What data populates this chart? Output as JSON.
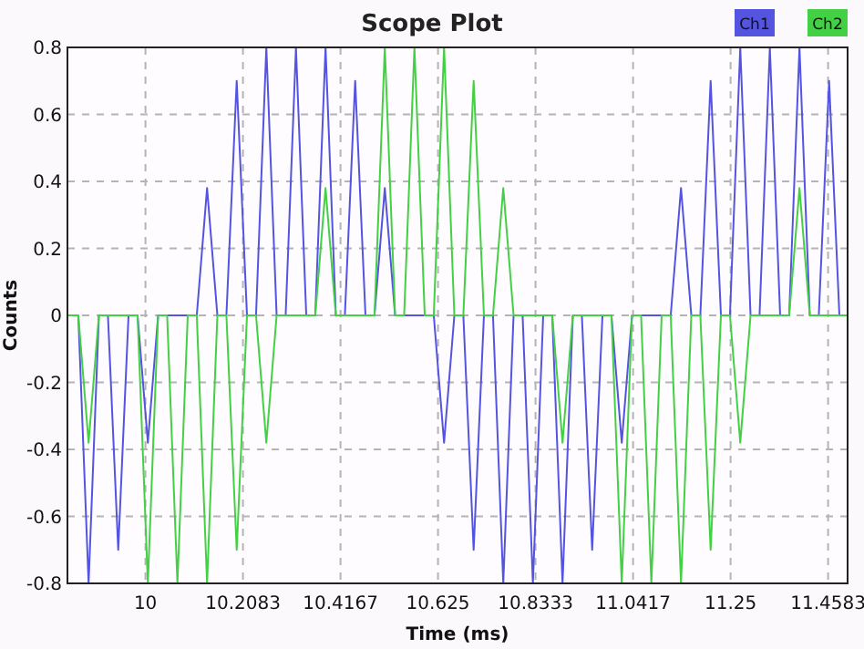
{
  "chart_data": {
    "type": "line",
    "title": "Scope Plot",
    "xlabel": "Time (ms)",
    "ylabel": "Counts",
    "xlim": [
      9.8333,
      11.5
    ],
    "xticks": [
      10,
      10.2083,
      10.4167,
      10.625,
      10.8333,
      11.0417,
      11.25,
      11.4583
    ],
    "ylim": [
      -0.8,
      0.8
    ],
    "yticks": [
      -0.8,
      -0.6,
      -0.4,
      -0.2,
      0,
      0.2,
      0.4,
      0.6,
      0.8
    ],
    "grid": true,
    "legend": "top right",
    "marker": "none",
    "line_style": "solid",
    "series": [
      {
        "name": "Ch1",
        "color": "#5454e0",
        "x": [
          9.8333,
          9.8565,
          9.8785,
          9.9005,
          9.9198,
          9.9418,
          9.9638,
          9.9831,
          10.0051,
          10.0271,
          10.1096,
          10.1316,
          10.1536,
          10.1729,
          10.1949,
          10.2169,
          10.2362,
          10.2582,
          10.2802,
          10.2995,
          10.3215,
          10.3435,
          10.3627,
          10.3847,
          10.4067,
          10.426,
          10.448,
          10.47,
          10.4893,
          10.5113,
          10.5333,
          10.6159,
          10.6379,
          10.6599,
          10.6791,
          10.7011,
          10.7231,
          10.7424,
          10.7644,
          10.7864,
          10.8057,
          10.8277,
          10.8497,
          10.869,
          10.891,
          10.913,
          10.9323,
          10.9543,
          10.9763,
          10.9955,
          11.0175,
          11.0395,
          11.1221,
          11.1441,
          11.1661,
          11.1854,
          11.2074,
          11.2294,
          11.2487,
          11.2707,
          11.2927,
          11.3119,
          11.3339,
          11.3559,
          11.3752,
          11.3972,
          11.4192,
          11.4385,
          11.4605,
          11.4825,
          11.5
        ],
        "values": [
          0,
          0,
          -0.8,
          0,
          0,
          -0.7,
          0,
          0,
          -0.38,
          0,
          0,
          0.38,
          0,
          0,
          0.7,
          0,
          0,
          0.8,
          0,
          0,
          0.8,
          0,
          0,
          0.8,
          0,
          0,
          0.7,
          0,
          0,
          0.38,
          0,
          0,
          -0.38,
          0,
          0,
          -0.7,
          0,
          0,
          -0.8,
          0,
          0,
          -0.8,
          0,
          0,
          -0.8,
          0,
          0,
          -0.7,
          0,
          0,
          -0.38,
          0,
          0,
          0.38,
          0,
          0,
          0.7,
          0,
          0,
          0.8,
          0,
          0,
          0.8,
          0,
          0,
          0.8,
          0,
          0,
          0.7,
          0,
          0
        ]
      },
      {
        "name": "Ch2",
        "color": "#44d044",
        "x": [
          9.8333,
          9.8565,
          9.8785,
          9.9005,
          9.9831,
          10.0051,
          10.0271,
          10.0463,
          10.0683,
          10.0903,
          10.1096,
          10.1316,
          10.1536,
          10.1729,
          10.1949,
          10.2169,
          10.2362,
          10.2582,
          10.2802,
          10.3627,
          10.3847,
          10.4067,
          10.4893,
          10.5113,
          10.5333,
          10.5526,
          10.5746,
          10.5966,
          10.6159,
          10.6379,
          10.6599,
          10.6791,
          10.7011,
          10.7231,
          10.7424,
          10.7644,
          10.7864,
          10.869,
          10.891,
          10.913,
          10.9955,
          11.0175,
          11.0395,
          11.0588,
          11.0808,
          11.1028,
          11.1221,
          11.1441,
          11.1661,
          11.1854,
          11.2074,
          11.2294,
          11.2487,
          11.2707,
          11.2927,
          11.3752,
          11.3972,
          11.4192,
          11.5
        ],
        "values": [
          0,
          0,
          -0.38,
          0,
          0,
          -0.8,
          0,
          0,
          -0.8,
          0,
          0,
          -0.8,
          0,
          0,
          -0.7,
          0,
          0,
          -0.38,
          0,
          0,
          0.38,
          0,
          0,
          0.8,
          0,
          0,
          0.8,
          0,
          0,
          0.8,
          0,
          0,
          0.7,
          0,
          0,
          0.38,
          0,
          0,
          -0.38,
          0,
          0,
          -0.8,
          0,
          0,
          -0.8,
          0,
          0,
          -0.8,
          0,
          0,
          -0.7,
          0,
          0,
          -0.38,
          0,
          0,
          0.38,
          0,
          0
        ]
      }
    ]
  }
}
